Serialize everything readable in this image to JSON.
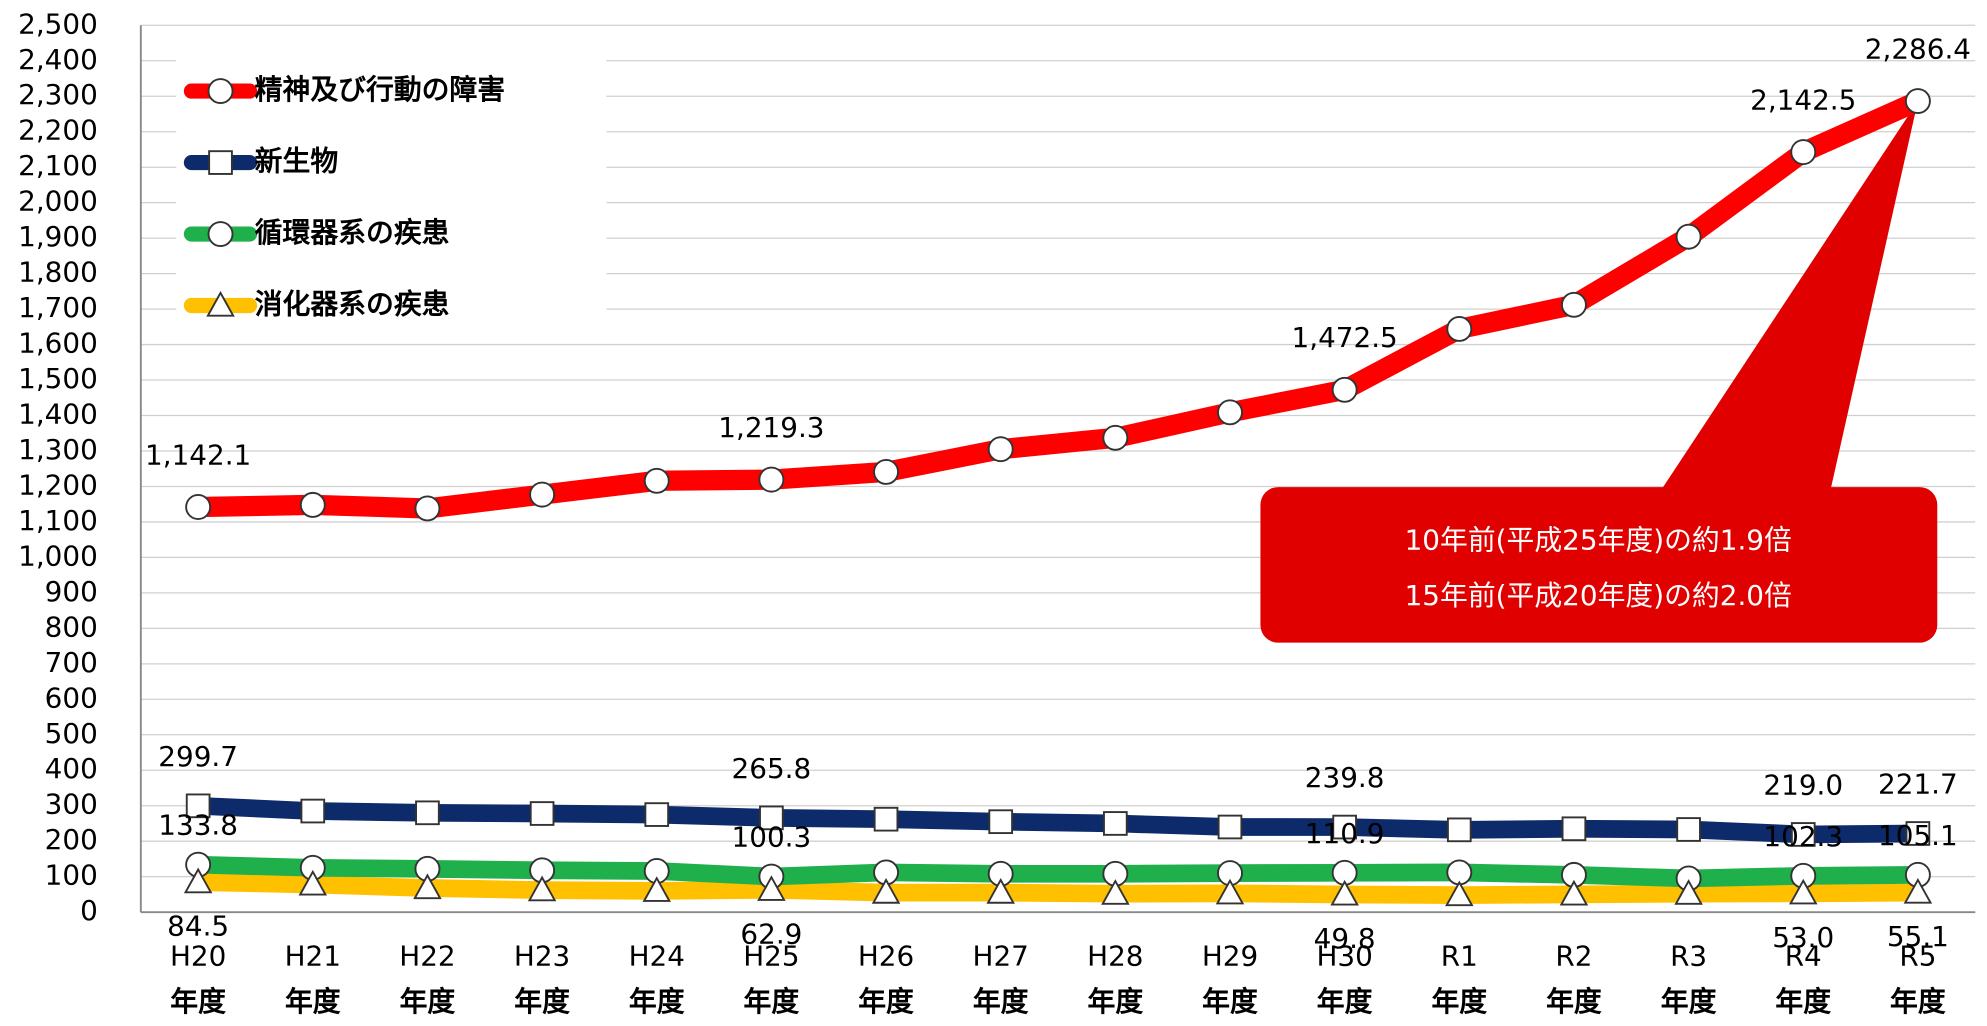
{
  "chart_data": {
    "type": "line",
    "categories": [
      "H20\n年度",
      "H21\n年度",
      "H22\n年度",
      "H23\n年度",
      "H24\n年度",
      "H25\n年度",
      "H26\n年度",
      "H27\n年度",
      "H28\n年度",
      "H29\n年度",
      "H30\n年度",
      "R1\n年度",
      "R2\n年度",
      "R3\n年度",
      "R4\n年度",
      "R5\n年度"
    ],
    "series": [
      {
        "name": "精神及び行動の障害",
        "color": "#ff0000",
        "marker": "circle",
        "values": [
          1142.1,
          1148,
          1138,
          1177,
          1216,
          1219.3,
          1241,
          1305,
          1337,
          1409,
          1472.5,
          1644,
          1712,
          1904,
          2142.5,
          2286.4
        ],
        "value_labels": [
          "1,142.1",
          null,
          null,
          null,
          null,
          "1,219.3",
          null,
          null,
          null,
          null,
          "1,472.5",
          null,
          null,
          null,
          "2,142.5",
          "2,286.4"
        ]
      },
      {
        "name": "新生物",
        "color": "#0d2a6b",
        "marker": "square",
        "values": [
          299.7,
          285,
          280,
          278,
          275,
          265.8,
          262,
          255,
          250,
          240,
          239.8,
          232,
          235,
          233,
          219.0,
          221.7
        ],
        "value_labels": [
          "299.7",
          null,
          null,
          null,
          null,
          "265.8",
          null,
          null,
          null,
          null,
          "239.8",
          null,
          null,
          null,
          "219.0",
          "221.7"
        ]
      },
      {
        "name": "循環器系の疾患",
        "color": "#1fb04b",
        "marker": "circle",
        "values": [
          133.8,
          125,
          122,
          118,
          116,
          100.3,
          112,
          108,
          108,
          110,
          110.9,
          112,
          105,
          95,
          102.3,
          105.1
        ],
        "value_labels": [
          "133.8",
          null,
          null,
          null,
          null,
          "100.3",
          null,
          null,
          null,
          null,
          "110.9",
          null,
          null,
          null,
          "102.3",
          "105.1"
        ]
      },
      {
        "name": "消化器系の疾患",
        "color": "#ffc000",
        "marker": "triangle",
        "values": [
          84.5,
          78,
          68,
          62,
          60,
          62.9,
          55,
          55,
          52,
          53,
          49.8,
          48,
          50,
          52,
          53.0,
          55.1
        ],
        "value_labels": [
          "84.5",
          null,
          null,
          null,
          null,
          "62.9",
          null,
          null,
          null,
          null,
          "49.8",
          null,
          null,
          null,
          "53.0",
          "55.1"
        ]
      }
    ],
    "ylim": [
      0,
      2500
    ],
    "yticks": [
      0,
      100,
      200,
      300,
      400,
      500,
      600,
      700,
      800,
      900,
      {
        "value": 1000,
        "label": "1,000"
      },
      {
        "value": 1100,
        "label": "1,100"
      },
      {
        "value": 1200,
        "label": "1,200"
      },
      {
        "value": 1300,
        "label": "1,300"
      },
      {
        "value": 1400,
        "label": "1,400"
      },
      {
        "value": 1500,
        "label": "1,500"
      },
      {
        "value": 1600,
        "label": "1,600"
      },
      {
        "value": 1700,
        "label": "1,700"
      },
      {
        "value": 1800,
        "label": "1,800"
      },
      {
        "value": 1900,
        "label": "1,900"
      },
      {
        "value": 2000,
        "label": "2,000"
      },
      {
        "value": 2100,
        "label": "2,100"
      },
      {
        "value": 2200,
        "label": "2,200"
      },
      {
        "value": 2300,
        "label": "2,300"
      },
      {
        "value": 2400,
        "label": "2,400"
      },
      {
        "value": 2500,
        "label": "2,500"
      }
    ],
    "grid": true,
    "legend": "top-left",
    "annotation": [
      "10年前(平成25年度)の約1.9倍",
      "15年前(平成20年度)の約2.0倍"
    ]
  }
}
